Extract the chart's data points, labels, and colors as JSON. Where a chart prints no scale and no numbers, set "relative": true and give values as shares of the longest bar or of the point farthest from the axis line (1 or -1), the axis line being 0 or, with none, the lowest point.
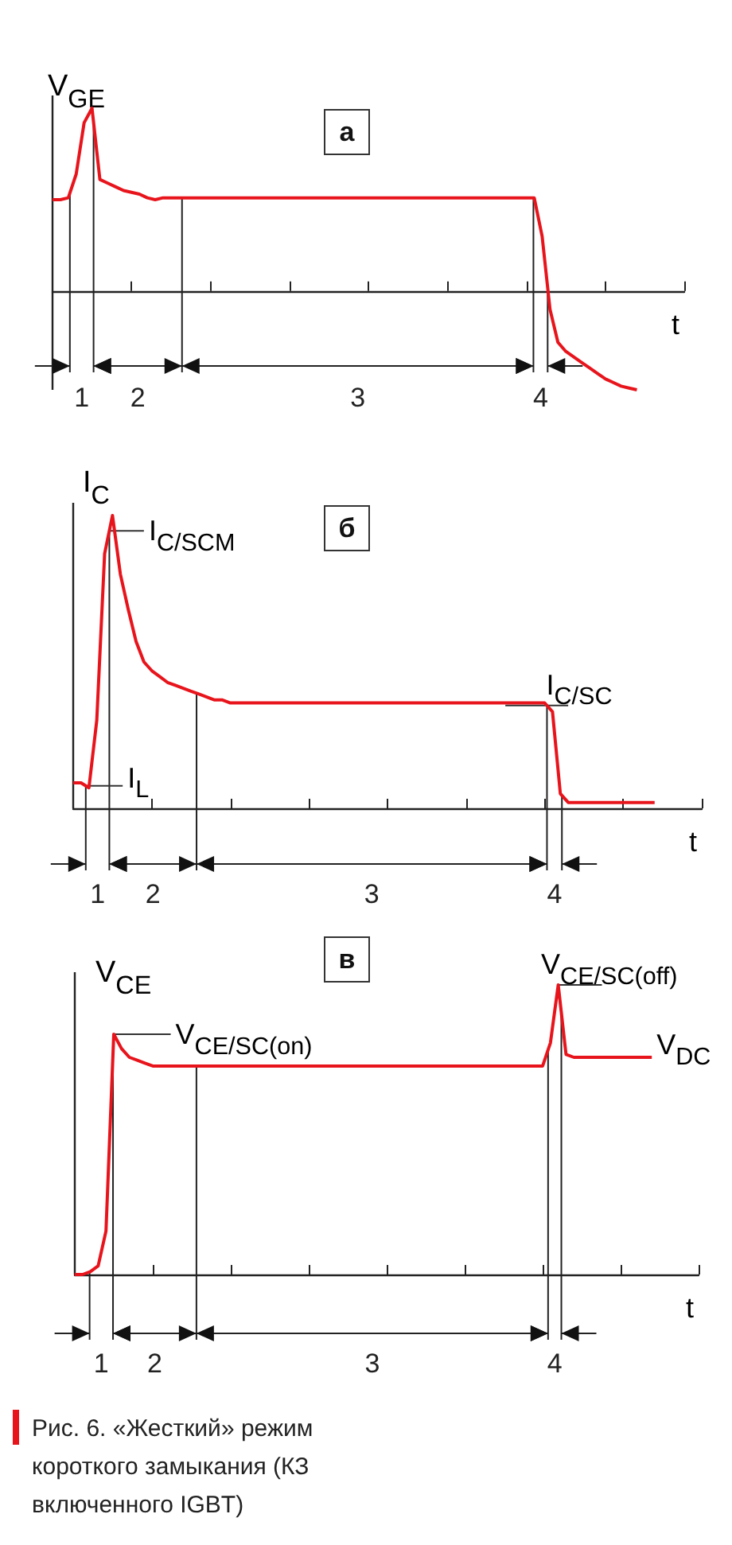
{
  "chart_data": [
    {
      "type": "line",
      "relative": true,
      "ylabel": "V$_{GE}$",
      "xlabel": "t",
      "categories": [
        null,
        null,
        null,
        null,
        null,
        null,
        null,
        null,
        null,
        null,
        null,
        null,
        null,
        null,
        null,
        null,
        null,
        null,
        null,
        null,
        null,
        null,
        null,
        null,
        null,
        null,
        null,
        null,
        null,
        null,
        null,
        null,
        null,
        null,
        null,
        null,
        null,
        null,
        null,
        null,
        null,
        null,
        null,
        null,
        null,
        null,
        null,
        null,
        null,
        null,
        null,
        null,
        null,
        null,
        null,
        null,
        null,
        null,
        null,
        null,
        null,
        null,
        null,
        null,
        null,
        null,
        null,
        null,
        null,
        null,
        null,
        null,
        null,
        null,
        null,
        null,
        null,
        null,
        null,
        null,
        null
      ],
      "series": [
        {
          "color": "#e8141c",
          "values": [
            0.5,
            0.5,
            0.51,
            0.64,
            0.92,
            1.0,
            0.61,
            0.59,
            0.57,
            0.55,
            0.54,
            0.53,
            0.51,
            0.5,
            0.51,
            0.51,
            0.51,
            0.51,
            0.51,
            0.51,
            0.51,
            0.51,
            0.51,
            0.51,
            0.51,
            0.51,
            0.51,
            0.51,
            0.51,
            0.51,
            0.51,
            0.51,
            0.51,
            0.51,
            0.51,
            0.51,
            0.51,
            0.51,
            0.51,
            0.51,
            0.51,
            0.51,
            0.51,
            0.51,
            0.51,
            0.51,
            0.51,
            0.51,
            0.51,
            0.51,
            0.51,
            0.51,
            0.51,
            0.51,
            0.51,
            0.51,
            0.51,
            0.51,
            0.51,
            0.51,
            0.51,
            0.51,
            0.3,
            -0.1,
            -0.28,
            -0.33,
            -0.36,
            -0.39,
            -0.42,
            -0.45,
            -0.48,
            -0.5,
            -0.52,
            -0.53,
            -0.54,
            null,
            null,
            null,
            null,
            null,
            null
          ]
        }
      ],
      "annotations": [
        "а",
        "1",
        "2",
        "3",
        "4"
      ]
    },
    {
      "type": "line",
      "relative": true,
      "ylabel": "I$_{C}$",
      "xlabel": "t",
      "categories": [
        null,
        null,
        null,
        null,
        null,
        null,
        null,
        null,
        null,
        null,
        null,
        null,
        null,
        null,
        null,
        null,
        null,
        null,
        null,
        null,
        null,
        null,
        null,
        null,
        null,
        null,
        null,
        null,
        null,
        null,
        null,
        null,
        null,
        null,
        null,
        null,
        null,
        null,
        null,
        null,
        null,
        null,
        null,
        null,
        null,
        null,
        null,
        null,
        null,
        null,
        null,
        null,
        null,
        null,
        null,
        null,
        null,
        null,
        null,
        null,
        null,
        null,
        null,
        null,
        null,
        null,
        null,
        null,
        null,
        null,
        null,
        null,
        null,
        null,
        null,
        null,
        null,
        null,
        null,
        null,
        null
      ],
      "series": [
        {
          "color": "#e8141c",
          "values": [
            0.087,
            0.087,
            0.07,
            0.3,
            0.87,
            1.0,
            0.8,
            0.68,
            0.57,
            0.5,
            0.47,
            0.45,
            0.43,
            0.42,
            0.41,
            0.4,
            0.39,
            0.38,
            0.37,
            0.37,
            0.36,
            0.36,
            0.36,
            0.36,
            0.36,
            0.36,
            0.36,
            0.36,
            0.36,
            0.36,
            0.36,
            0.36,
            0.36,
            0.36,
            0.36,
            0.36,
            0.36,
            0.36,
            0.36,
            0.36,
            0.36,
            0.36,
            0.36,
            0.36,
            0.36,
            0.36,
            0.36,
            0.36,
            0.36,
            0.36,
            0.36,
            0.36,
            0.36,
            0.36,
            0.36,
            0.36,
            0.36,
            0.36,
            0.36,
            0.36,
            0.36,
            0.33,
            0.05,
            0.02,
            0.02,
            0.02,
            0.02,
            0.02,
            0.02,
            0.02,
            0.02,
            0.02,
            0.02,
            0.02,
            0.02,
            null,
            null,
            null,
            null,
            null,
            null
          ]
        }
      ],
      "annotations": [
        "б",
        "1",
        "2",
        "3",
        "4",
        "I$_{C/SCM}$",
        "I$_{L}$",
        "I$_{C/SC}$"
      ]
    },
    {
      "type": "line",
      "relative": true,
      "ylabel": "V$_{CE}$",
      "xlabel": "t",
      "categories": [
        null,
        null,
        null,
        null,
        null,
        null,
        null,
        null,
        null,
        null,
        null,
        null,
        null,
        null,
        null,
        null,
        null,
        null,
        null,
        null,
        null,
        null,
        null,
        null,
        null,
        null,
        null,
        null,
        null,
        null,
        null,
        null,
        null,
        null,
        null,
        null,
        null,
        null,
        null,
        null,
        null,
        null,
        null,
        null,
        null,
        null,
        null,
        null,
        null,
        null,
        null,
        null,
        null,
        null,
        null,
        null,
        null,
        null,
        null,
        null,
        null,
        null,
        null,
        null,
        null,
        null,
        null,
        null,
        null,
        null,
        null,
        null,
        null,
        null,
        null,
        null,
        null,
        null,
        null,
        null,
        null
      ],
      "series": [
        {
          "color": "#e8141c",
          "values": [
            0,
            0,
            0.01,
            0.03,
            0.15,
            0.83,
            0.78,
            0.75,
            0.74,
            0.73,
            0.72,
            0.72,
            0.72,
            0.72,
            0.72,
            0.72,
            0.72,
            0.72,
            0.72,
            0.72,
            0.72,
            0.72,
            0.72,
            0.72,
            0.72,
            0.72,
            0.72,
            0.72,
            0.72,
            0.72,
            0.72,
            0.72,
            0.72,
            0.72,
            0.72,
            0.72,
            0.72,
            0.72,
            0.72,
            0.72,
            0.72,
            0.72,
            0.72,
            0.72,
            0.72,
            0.72,
            0.72,
            0.72,
            0.72,
            0.72,
            0.72,
            0.72,
            0.72,
            0.72,
            0.72,
            0.72,
            0.72,
            0.72,
            0.72,
            0.72,
            0.72,
            0.8,
            1.0,
            0.76,
            0.75,
            0.75,
            0.75,
            0.75,
            0.75,
            0.75,
            0.75,
            0.75,
            0.75,
            0.75,
            0.75,
            null,
            null,
            null,
            null,
            null,
            null
          ]
        }
      ],
      "annotations": [
        "в",
        "1",
        "2",
        "3",
        "4",
        "V$_{CE/SC(on)}$",
        "V$_{CE/SC(off)}$",
        "V$_{DC}$",
        "Рис. 6. «Жесткий» режим короткого замыкания (КЗ включенного IGBT)"
      ]
    }
  ]
}
